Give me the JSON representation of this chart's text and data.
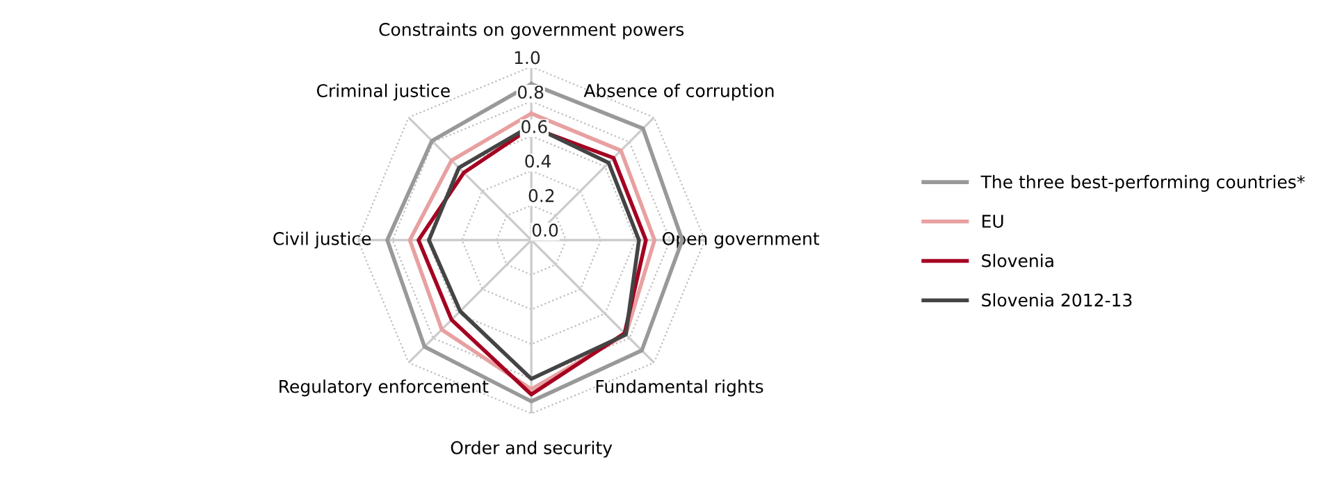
{
  "chart_data": {
    "type": "radar",
    "categories": [
      "Constraints on government powers",
      "Absence of corruption",
      "Open government",
      "Fundamental rights",
      "Order and security",
      "Regulatory enforcement",
      "Civil justice",
      "Criminal justice"
    ],
    "series": [
      {
        "name": "The three best-performing countries*",
        "color": "#999999",
        "values": [
          0.9,
          0.91,
          0.87,
          0.9,
          0.93,
          0.87,
          0.83,
          0.81
        ]
      },
      {
        "name": "EU",
        "color": "#e8a0a0",
        "values": [
          0.73,
          0.73,
          0.71,
          0.77,
          0.86,
          0.73,
          0.7,
          0.65
        ]
      },
      {
        "name": "Slovenia",
        "color": "#a50021",
        "values": [
          0.65,
          0.67,
          0.66,
          0.76,
          0.89,
          0.65,
          0.65,
          0.55
        ]
      },
      {
        "name": "Slovenia 2012-13",
        "color": "#444444",
        "values": [
          0.66,
          0.63,
          0.62,
          0.77,
          0.8,
          0.58,
          0.59,
          0.59
        ]
      }
    ],
    "ylim": [
      0,
      1.0
    ],
    "yticks": [
      {
        "value": 0,
        "label": "0.0"
      },
      {
        "value": 0.2,
        "label": "0.2"
      },
      {
        "value": 0.4,
        "label": "0.4"
      },
      {
        "value": 0.6,
        "label": "0.6"
      },
      {
        "value": 0.8,
        "label": "0.8"
      },
      {
        "value": 1.0,
        "label": "1.0"
      }
    ],
    "grid": true,
    "legend": "right",
    "marker": "none",
    "line_style": "solid"
  }
}
